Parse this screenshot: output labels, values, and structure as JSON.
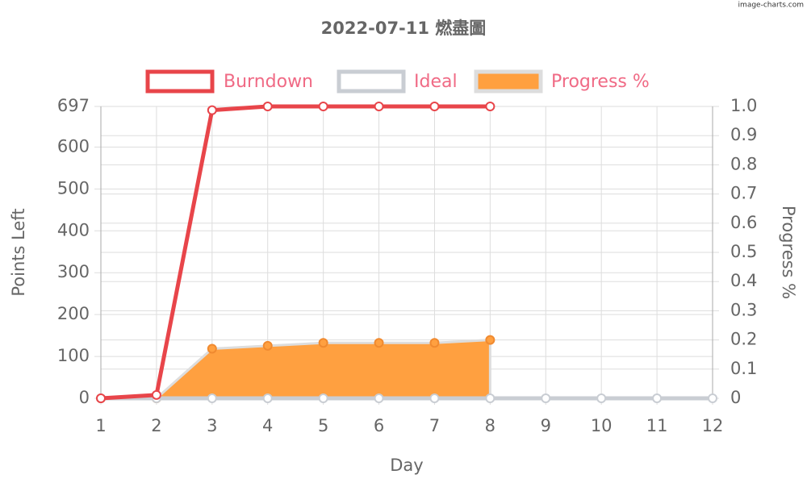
{
  "chart_data": {
    "type": "line",
    "title": "2022-07-11 燃盡圖",
    "watermark": "image-charts.com",
    "x_label": "Day",
    "y_label": "Points Left",
    "y2_label": "Progress %",
    "categories": [
      "1",
      "2",
      "3",
      "4",
      "5",
      "6",
      "7",
      "8",
      "9",
      "10",
      "11",
      "12"
    ],
    "series": [
      {
        "name": "Burndown",
        "color": "#e8454a",
        "values": [
          0,
          8,
          688,
          697,
          697,
          697,
          697,
          697,
          null,
          null,
          null,
          null
        ]
      },
      {
        "name": "Ideal",
        "color": "#c9cdd3",
        "values": [
          0,
          0,
          0,
          0,
          0,
          0,
          0,
          0,
          0,
          0,
          0,
          0
        ]
      },
      {
        "name": "Progress %",
        "color": "#ffa040",
        "type": "area",
        "axis": "y2",
        "values": [
          0,
          0,
          0.17,
          0.18,
          0.19,
          0.19,
          0.19,
          0.2,
          null,
          null,
          null,
          null
        ]
      }
    ],
    "ylim": [
      0,
      697
    ],
    "yticks": [
      0,
      100,
      200,
      300,
      400,
      500,
      600,
      697
    ],
    "y2lim": [
      0,
      1
    ],
    "y2ticks": [
      0,
      0.1,
      0.2,
      0.3,
      0.4,
      0.5,
      0.6,
      0.7,
      0.8,
      0.9,
      {
        "value": 1,
        "label": "1.0"
      }
    ],
    "grid": true,
    "legend": "top"
  }
}
